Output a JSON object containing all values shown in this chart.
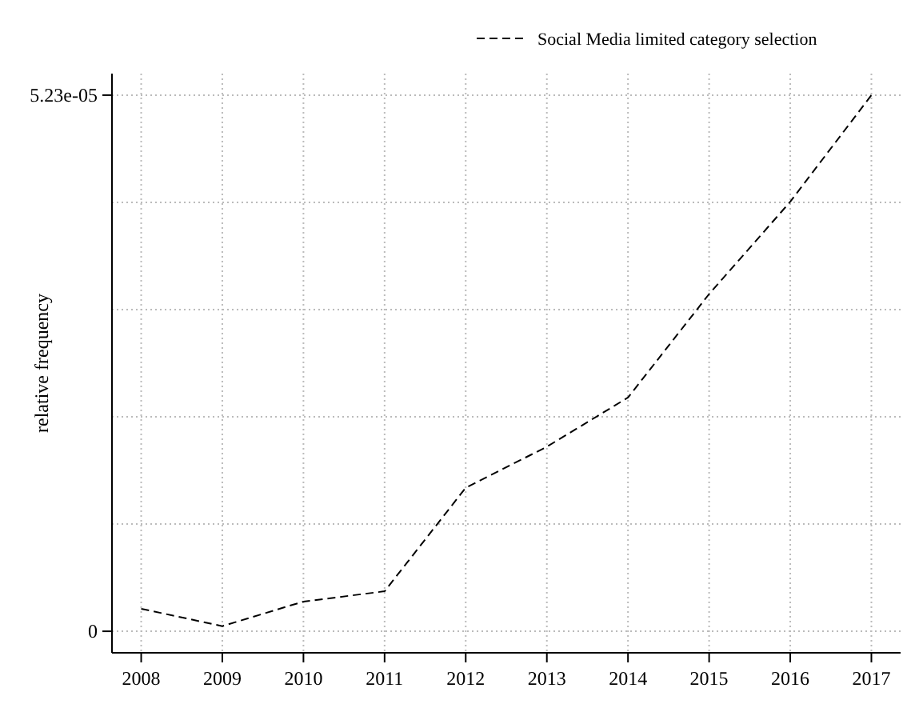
{
  "chart_data": {
    "type": "line",
    "ylabel": "relative frequency",
    "x": [
      2008,
      2009,
      2010,
      2011,
      2012,
      2013,
      2014,
      2015,
      2016,
      2017
    ],
    "series": [
      {
        "name": "Social Media limited category selection",
        "color": "#000000",
        "values": [
          2.2e-06,
          5e-07,
          2.9e-06,
          3.9e-06,
          1.4e-05,
          1.8e-05,
          2.28e-05,
          3.29e-05,
          4.19e-05,
          5.23e-05
        ]
      }
    ],
    "xlim": [
      2007.64,
      2017.36
    ],
    "xticks": [
      2008,
      2009,
      2010,
      2011,
      2012,
      2013,
      2014,
      2015,
      2016,
      2017
    ],
    "ylim": [
      -2.1e-06,
      5.44e-05
    ],
    "yticks": [
      0,
      {
        "value": 1.046e-05,
        "label": null
      },
      {
        "value": 2.092e-05,
        "label": null
      },
      {
        "value": 3.138e-05,
        "label": null
      },
      {
        "value": 4.184e-05,
        "label": null
      },
      {
        "value": 5.23e-05,
        "label": "5.23e-05"
      }
    ],
    "grid": true,
    "legend": "top",
    "line_style": "dashed",
    "marker": "none"
  }
}
